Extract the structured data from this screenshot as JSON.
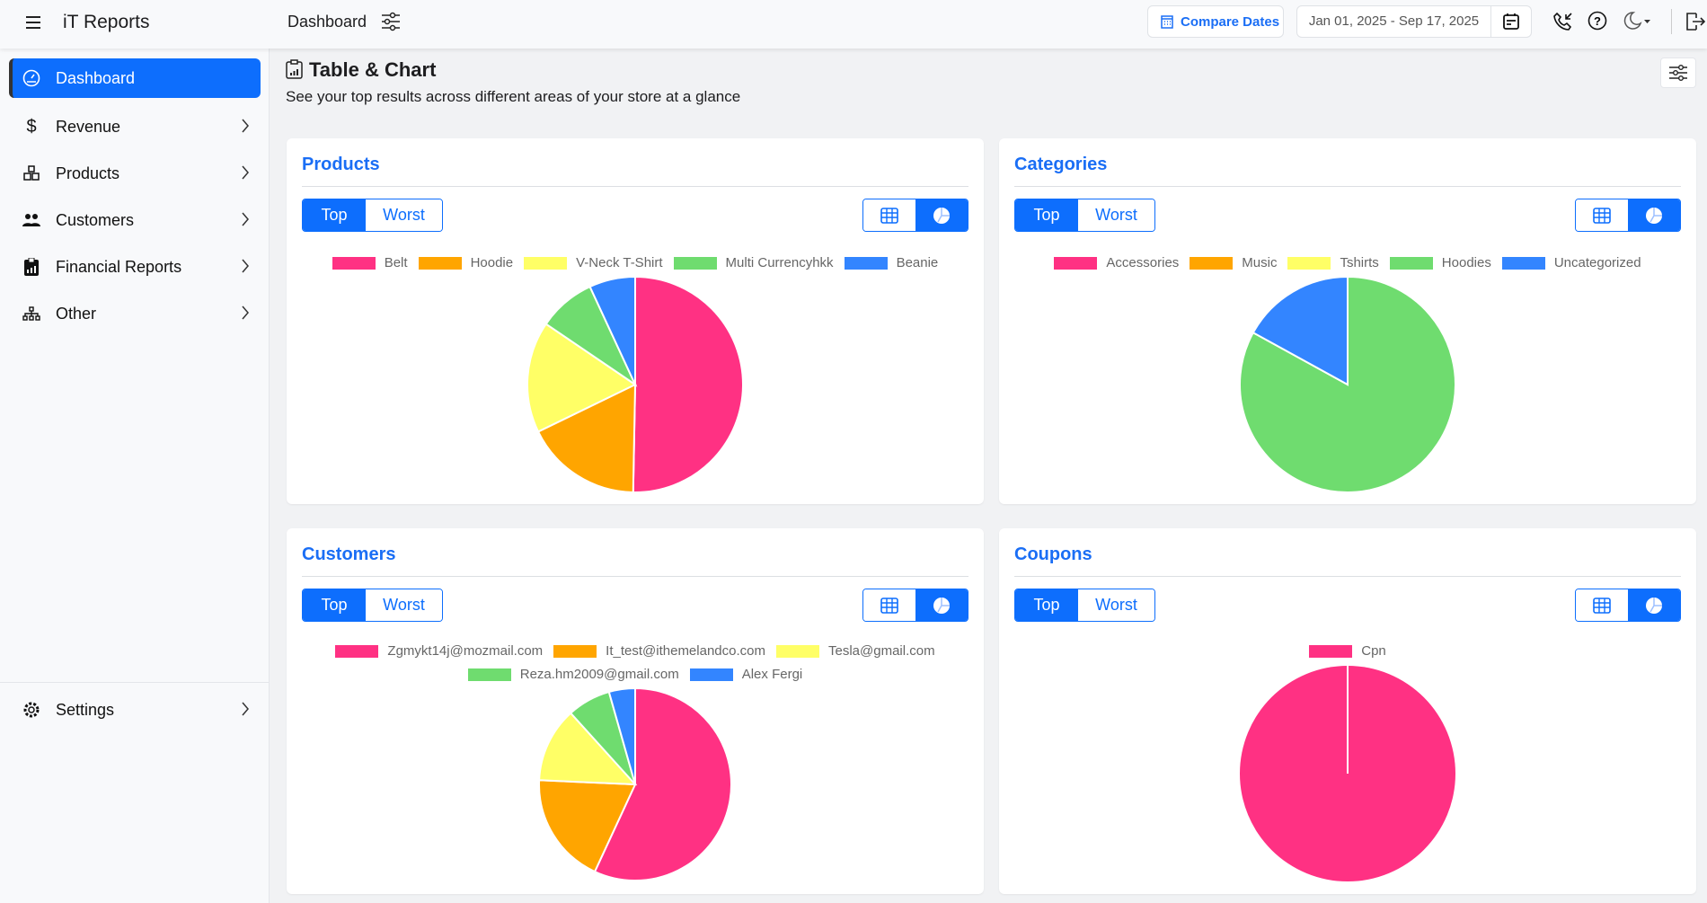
{
  "header": {
    "app_title": "iT Reports",
    "page": "Dashboard",
    "compare_label": "Compare Dates",
    "date_range": "Jan 01, 2025 - Sep 17, 2025"
  },
  "sidebar": {
    "items": [
      {
        "label": "Dashboard",
        "icon": "gauge-icon",
        "active": true
      },
      {
        "label": "Revenue",
        "icon": "dollar-icon"
      },
      {
        "label": "Products",
        "icon": "boxes-icon"
      },
      {
        "label": "Customers",
        "icon": "users-icon"
      },
      {
        "label": "Financial Reports",
        "icon": "clipboard-chart-icon"
      },
      {
        "label": "Other",
        "icon": "sitemap-icon"
      }
    ],
    "settings": "Settings"
  },
  "main": {
    "title": "Table & Chart",
    "subtitle": "See your top results across different areas of your store at a glance"
  },
  "toggle": {
    "top": "Top",
    "worst": "Worst"
  },
  "colors": {
    "accent": "#0d6efd",
    "palette": [
      "#ff3183",
      "#ffa500",
      "#ffff66",
      "#6fdc6f",
      "#3385ff"
    ]
  },
  "chart_data": [
    {
      "type": "pie",
      "title": "Products",
      "categories": [
        "Belt",
        "Hoodie",
        "V-Neck T-Shirt",
        "Multi Currencyhkk",
        "Beanie"
      ],
      "values": [
        50.3,
        17.5,
        16.7,
        8.6,
        6.9
      ]
    },
    {
      "type": "pie",
      "title": "Categories",
      "categories": [
        "Accessories",
        "Music",
        "Tshirts",
        "Hoodies",
        "Uncategorized"
      ],
      "values": [
        0,
        0,
        0,
        83,
        17
      ]
    },
    {
      "type": "pie",
      "title": "Customers",
      "categories": [
        "Zgmykt14j@mozmail.com",
        "It_test@ithemelandco.com",
        "Tesla@gmail.com",
        "Reza.hm2009@gmail.com",
        "Alex Fergi"
      ],
      "values": [
        56.9,
        18.8,
        12.6,
        7.3,
        4.4
      ]
    },
    {
      "type": "pie",
      "title": "Coupons",
      "categories": [
        "Cpn"
      ],
      "values": [
        100
      ]
    }
  ]
}
